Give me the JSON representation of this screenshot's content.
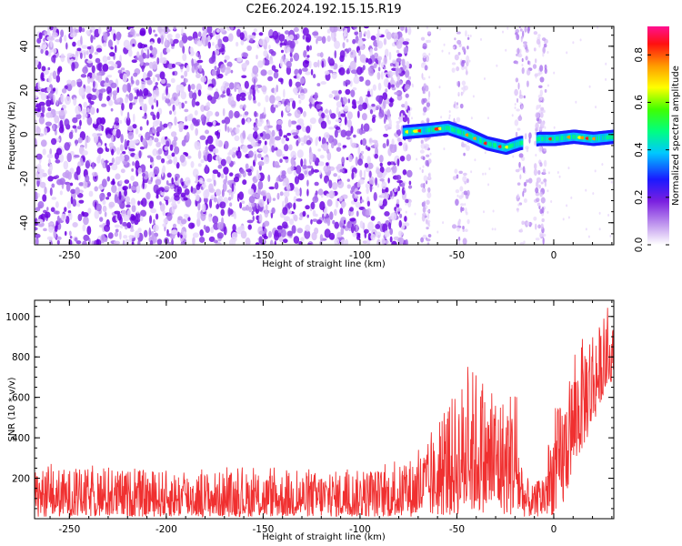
{
  "title": "C2E6.2024.192.15.15.R19",
  "colors": {
    "snr_line": "#f03030",
    "spectrogram_base": "#8a2be2",
    "axis": "#000000"
  },
  "chart_data": [
    {
      "type": "heatmap",
      "name": "spectrogram",
      "xlabel": "Height of straight line (km)",
      "ylabel": "Frequency (Hz)",
      "xlim": [
        -268,
        31
      ],
      "ylim": [
        -50,
        49
      ],
      "xticks": [
        -250,
        -200,
        -150,
        -100,
        -50,
        0
      ],
      "xtick_labels": [
        "-250",
        "-200",
        "-150",
        "-100",
        "-50",
        "0"
      ],
      "yticks": [
        40,
        20,
        0,
        -20,
        -40
      ],
      "ytick_labels": [
        "40",
        "20",
        "0",
        "-20",
        "-40"
      ],
      "description_regions": [
        {
          "x_range": [
            -268,
            -78
          ],
          "signal": "broadband noise"
        },
        {
          "x_range": [
            -78,
            -18
          ],
          "signal": "narrow band near 0 Hz drifting to -5 Hz"
        },
        {
          "x_range": [
            -8,
            31
          ],
          "signal": "narrow band near -2 Hz"
        }
      ],
      "ridge": {
        "x": [
          -78,
          -65,
          -55,
          -45,
          -35,
          -25,
          -18,
          -8,
          0,
          10,
          20,
          31
        ],
        "y": [
          1,
          2,
          3,
          0,
          -4,
          -6,
          -4,
          -2,
          -2,
          -1,
          -2,
          -1
        ]
      },
      "colorbar": {
        "label": "Normalized spectral amplitude",
        "range": [
          0.0,
          0.92
        ],
        "ticks": [
          0.0,
          0.2,
          0.4,
          0.6,
          0.8
        ],
        "tick_labels": [
          "0.0",
          "0.2",
          "0.4",
          "0.6",
          "0.8"
        ]
      }
    },
    {
      "type": "line",
      "name": "snr",
      "xlabel": "Height of straight line (km)",
      "ylabel": "SNR (10 * v/v)",
      "xlim": [
        -268,
        31
      ],
      "ylim": [
        0,
        1080
      ],
      "xticks": [
        -250,
        -200,
        -150,
        -100,
        -50,
        0
      ],
      "xtick_labels": [
        "-250",
        "-200",
        "-150",
        "-100",
        "-50",
        "0"
      ],
      "yticks": [
        200,
        400,
        600,
        800,
        1000
      ],
      "ytick_labels": [
        "200",
        "400",
        "600",
        "800",
        "1000"
      ],
      "envelope": {
        "x": [
          -268,
          -200,
          -150,
          -100,
          -80,
          -70,
          -60,
          -55,
          -50,
          -45,
          -40,
          -35,
          -30,
          -25,
          -20,
          -18,
          -15,
          -10,
          -5,
          0,
          5,
          10,
          15,
          20,
          25,
          31
        ],
        "lower": [
          10,
          10,
          10,
          10,
          10,
          10,
          15,
          15,
          20,
          30,
          30,
          30,
          30,
          20,
          15,
          10,
          10,
          10,
          10,
          20,
          60,
          250,
          350,
          450,
          600,
          700
        ],
        "upper": [
          250,
          240,
          230,
          240,
          260,
          330,
          420,
          560,
          640,
          720,
          760,
          620,
          650,
          600,
          700,
          420,
          220,
          160,
          260,
          500,
          620,
          760,
          900,
          980,
          950,
          950
        ]
      }
    }
  ]
}
